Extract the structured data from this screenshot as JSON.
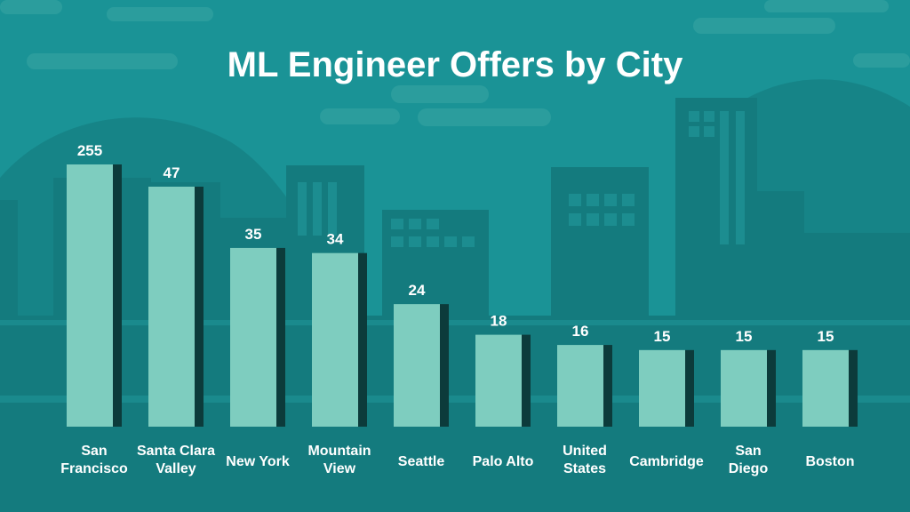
{
  "chart_data": {
    "type": "bar",
    "title": "ML Engineer Offers by City",
    "categories": [
      [
        "San",
        "Francisco"
      ],
      [
        "Santa Clara",
        "Valley"
      ],
      [
        "New York"
      ],
      [
        "Mountain",
        "View"
      ],
      [
        "Seattle"
      ],
      [
        "Palo Alto"
      ],
      [
        "United",
        "States"
      ],
      [
        "Cambridge"
      ],
      [
        "San",
        "Diego"
      ],
      [
        "Boston"
      ]
    ],
    "values": [
      255,
      47,
      35,
      34,
      24,
      18,
      16,
      15,
      15,
      15
    ],
    "xlabel": "",
    "ylabel": "",
    "grid": false,
    "colors": {
      "background": "#1a9396",
      "bar": "#7ecdbf",
      "bar_shadow": "#0c3b3b",
      "text": "#ffffff"
    }
  }
}
